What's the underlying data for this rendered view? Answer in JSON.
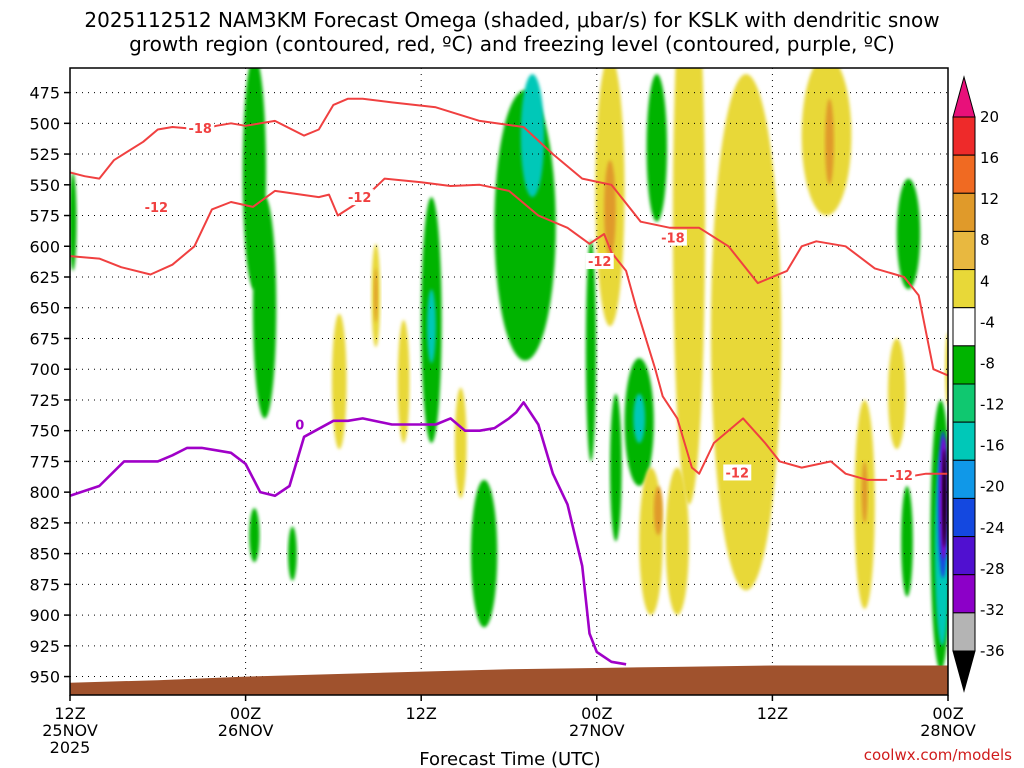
{
  "chart_data": {
    "type": "heatmap",
    "title": "2025112512 NAM3KM Forecast Omega (shaded, μbar/s) for KSLK with dendritic snow",
    "subtitle": "growth region (contoured, red, ºC) and freezing level (contoured, purple, ºC)",
    "xlabel": "Forecast Time (UTC)",
    "credit": "coolwx.com/models",
    "y_axis": {
      "scale": "pressure (hPa), increasing downward",
      "ylim": [
        455,
        965
      ],
      "ticks": [
        "475",
        "500",
        "525",
        "550",
        "575",
        "600",
        "625",
        "650",
        "675",
        "700",
        "725",
        "750",
        "775",
        "800",
        "825",
        "850",
        "875",
        "900",
        "925",
        "950"
      ]
    },
    "x_axis": {
      "xlim_hours": [
        0,
        60
      ],
      "ticks": [
        {
          "h": 0,
          "line1": "12Z",
          "line2": "25NOV",
          "line3": "2025"
        },
        {
          "h": 12,
          "line1": "00Z",
          "line2": "26NOV",
          "line3": ""
        },
        {
          "h": 24,
          "line1": "12Z",
          "line2": "",
          "line3": ""
        },
        {
          "h": 36,
          "line1": "00Z",
          "line2": "27NOV",
          "line3": ""
        },
        {
          "h": 48,
          "line1": "12Z",
          "line2": "",
          "line3": ""
        },
        {
          "h": 60,
          "line1": "00Z",
          "line2": "28NOV",
          "line3": ""
        }
      ]
    },
    "grid": true,
    "colorbar": {
      "ticks": [
        "20",
        "16",
        "12",
        "8",
        "4",
        "-4",
        "-8",
        "-12",
        "-16",
        "-20",
        "-24",
        "-28",
        "-32",
        "-36"
      ],
      "colors": [
        "#e8107a",
        "#ee2a2a",
        "#f06a22",
        "#e09a2a",
        "#e8b840",
        "#e8d838",
        "#ffffff",
        "#00b400",
        "#10c870",
        "#00c8b8",
        "#1098e8",
        "#1448e0",
        "#5010d0",
        "#8c00c8",
        "#b4b4b4",
        "#000000"
      ]
    },
    "omega_regions": [
      {
        "color": "#00b400",
        "center": [
          12.6,
          540
        ],
        "radius": [
          0.8,
          95
        ]
      },
      {
        "color": "#00b400",
        "center": [
          13.3,
          650
        ],
        "radius": [
          0.8,
          90
        ]
      },
      {
        "color": "#00b400",
        "center": [
          12.6,
          835
        ],
        "radius": [
          0.35,
          22
        ]
      },
      {
        "color": "#00b400",
        "center": [
          15.2,
          850
        ],
        "radius": [
          0.3,
          22
        ]
      },
      {
        "color": "#00b400",
        "center": [
          0.2,
          580
        ],
        "radius": [
          0.25,
          40
        ]
      },
      {
        "color": "#00b400",
        "center": [
          24.7,
          660
        ],
        "radius": [
          0.7,
          100
        ]
      },
      {
        "color": "#00c8b8",
        "center": [
          24.7,
          665
        ],
        "radius": [
          0.3,
          30
        ]
      },
      {
        "color": "#00b400",
        "center": [
          31.1,
          583
        ],
        "radius": [
          2.1,
          110
        ]
      },
      {
        "color": "#00c8b8",
        "center": [
          31.6,
          510
        ],
        "radius": [
          0.8,
          50
        ]
      },
      {
        "color": "#00b400",
        "center": [
          28.3,
          850
        ],
        "radius": [
          0.9,
          60
        ]
      },
      {
        "color": "#00b400",
        "center": [
          37.3,
          780
        ],
        "radius": [
          0.4,
          60
        ]
      },
      {
        "color": "#00b400",
        "center": [
          35.6,
          685
        ],
        "radius": [
          0.35,
          90
        ]
      },
      {
        "color": "#00b400",
        "center": [
          40.1,
          520
        ],
        "radius": [
          0.7,
          60
        ]
      },
      {
        "color": "#00b400",
        "center": [
          38.9,
          743
        ],
        "radius": [
          1.0,
          52
        ]
      },
      {
        "color": "#00c8b8",
        "center": [
          38.9,
          740
        ],
        "radius": [
          0.4,
          20
        ]
      },
      {
        "color": "#00b400",
        "center": [
          57.3,
          590
        ],
        "radius": [
          0.8,
          45
        ]
      },
      {
        "color": "#00b400",
        "center": [
          57.2,
          840
        ],
        "radius": [
          0.4,
          45
        ]
      },
      {
        "color": "#00b400",
        "center": [
          59.5,
          835
        ],
        "radius": [
          0.7,
          110
        ]
      },
      {
        "color": "#00c8b8",
        "center": [
          59.6,
          845
        ],
        "radius": [
          0.5,
          80
        ]
      },
      {
        "color": "#1448e0",
        "center": [
          59.65,
          810
        ],
        "radius": [
          0.35,
          60
        ]
      },
      {
        "color": "#8c00c8",
        "center": [
          59.7,
          805
        ],
        "radius": [
          0.25,
          50
        ]
      },
      {
        "color": "#000000",
        "center": [
          59.75,
          805
        ],
        "radius": [
          0.13,
          40
        ]
      },
      {
        "color": "#e8d838",
        "center": [
          20.9,
          640
        ],
        "radius": [
          0.3,
          42
        ]
      },
      {
        "color": "#e09a2a",
        "center": [
          20.9,
          640
        ],
        "radius": [
          0.12,
          22
        ]
      },
      {
        "color": "#e8d838",
        "center": [
          18.4,
          710
        ],
        "radius": [
          0.5,
          55
        ]
      },
      {
        "color": "#e8d838",
        "center": [
          22.8,
          710
        ],
        "radius": [
          0.4,
          50
        ]
      },
      {
        "color": "#e8d838",
        "center": [
          26.7,
          760
        ],
        "radius": [
          0.4,
          45
        ]
      },
      {
        "color": "#e8d838",
        "center": [
          36.9,
          555
        ],
        "radius": [
          1.0,
          110
        ]
      },
      {
        "color": "#e09a2a",
        "center": [
          36.9,
          570
        ],
        "radius": [
          0.4,
          40
        ]
      },
      {
        "color": "#e8d838",
        "center": [
          42.3,
          580
        ],
        "radius": [
          1.1,
          230
        ]
      },
      {
        "color": "#e8d838",
        "center": [
          39.7,
          840
        ],
        "radius": [
          0.8,
          60
        ]
      },
      {
        "color": "#e8d838",
        "center": [
          41.5,
          840
        ],
        "radius": [
          0.8,
          60
        ]
      },
      {
        "color": "#e09a2a",
        "center": [
          40.2,
          815
        ],
        "radius": [
          0.3,
          20
        ]
      },
      {
        "color": "#e8d838",
        "center": [
          46.2,
          670
        ],
        "radius": [
          2.4,
          210
        ]
      },
      {
        "color": "#e8d838",
        "center": [
          51.7,
          510
        ],
        "radius": [
          1.7,
          65
        ]
      },
      {
        "color": "#e09a2a",
        "center": [
          51.9,
          515
        ],
        "radius": [
          0.3,
          35
        ]
      },
      {
        "color": "#e8d838",
        "center": [
          54.3,
          810
        ],
        "radius": [
          0.7,
          85
        ]
      },
      {
        "color": "#e09a2a",
        "center": [
          54.3,
          800
        ],
        "radius": [
          0.2,
          25
        ]
      },
      {
        "color": "#e8d838",
        "center": [
          56.5,
          720
        ],
        "radius": [
          0.6,
          45
        ]
      },
      {
        "color": "#e8d838",
        "center": [
          60.0,
          700
        ],
        "radius": [
          0.2,
          30
        ]
      }
    ],
    "terrain": {
      "color": "#a0522d",
      "x": [
        0,
        6,
        12,
        18,
        24,
        30,
        36,
        42,
        48,
        54,
        60
      ],
      "surface_hPa": [
        955,
        953,
        950,
        948,
        946,
        944,
        943,
        942,
        941,
        941,
        941
      ]
    },
    "contours": [
      {
        "kind": "dgz",
        "label": "-12",
        "color": "#f04040",
        "points": [
          [
            0,
            608
          ],
          [
            2,
            610
          ],
          [
            3.5,
            617
          ],
          [
            5.5,
            623
          ],
          [
            7,
            615
          ],
          [
            8.5,
            600
          ],
          [
            9.7,
            570
          ],
          [
            11,
            564
          ],
          [
            12.5,
            568
          ],
          [
            14,
            555
          ],
          [
            17,
            560
          ],
          [
            17.7,
            558
          ],
          [
            18.3,
            575
          ],
          [
            20,
            562
          ],
          [
            21.5,
            545
          ],
          [
            24,
            548
          ],
          [
            26,
            551
          ],
          [
            28,
            550
          ],
          [
            30,
            555
          ],
          [
            32,
            575
          ],
          [
            34,
            585
          ],
          [
            35.5,
            598
          ],
          [
            36.5,
            590
          ],
          [
            37,
            605
          ],
          [
            38,
            620
          ],
          [
            38.7,
            650
          ],
          [
            40,
            700
          ],
          [
            40.5,
            722
          ],
          [
            41.5,
            740
          ],
          [
            42.5,
            780
          ],
          [
            43,
            785
          ],
          [
            44,
            760
          ],
          [
            46,
            740
          ],
          [
            47.5,
            760
          ],
          [
            48.5,
            775
          ],
          [
            50,
            780
          ],
          [
            52,
            775
          ],
          [
            53,
            785
          ],
          [
            54.5,
            790
          ],
          [
            56,
            790
          ],
          [
            58.5,
            785
          ],
          [
            60,
            785
          ]
        ]
      },
      {
        "kind": "dgz",
        "label": "-18",
        "color": "#f04040",
        "points": [
          [
            0,
            540
          ],
          [
            1,
            543
          ],
          [
            2,
            545
          ],
          [
            3,
            530
          ],
          [
            5,
            515
          ],
          [
            6,
            505
          ],
          [
            7,
            503
          ],
          [
            9,
            505
          ],
          [
            10,
            502
          ],
          [
            11,
            500
          ],
          [
            12,
            502
          ],
          [
            14,
            498
          ],
          [
            16,
            510
          ],
          [
            17,
            505
          ],
          [
            18,
            485
          ],
          [
            19,
            480
          ],
          [
            20,
            480
          ],
          [
            22,
            483
          ],
          [
            25,
            487
          ],
          [
            28,
            498
          ],
          [
            31,
            503
          ],
          [
            33,
            525
          ],
          [
            35,
            545
          ],
          [
            37,
            550
          ],
          [
            39,
            580
          ],
          [
            41,
            585
          ],
          [
            43,
            585
          ],
          [
            45,
            600
          ],
          [
            47,
            630
          ],
          [
            49,
            620
          ],
          [
            50,
            600
          ],
          [
            51,
            596
          ],
          [
            53,
            600
          ],
          [
            55,
            618
          ],
          [
            57,
            625
          ],
          [
            58,
            640
          ],
          [
            59,
            700
          ],
          [
            60,
            705
          ]
        ]
      },
      {
        "kind": "freezing",
        "label": "0",
        "color": "#a000c8",
        "points": [
          [
            0,
            803
          ],
          [
            2,
            795
          ],
          [
            3.7,
            775
          ],
          [
            5,
            775
          ],
          [
            6,
            775
          ],
          [
            7,
            770
          ],
          [
            8,
            764
          ],
          [
            9,
            764
          ],
          [
            10,
            766
          ],
          [
            11,
            768
          ],
          [
            12,
            777
          ],
          [
            13,
            800
          ],
          [
            14,
            803
          ],
          [
            15,
            795
          ],
          [
            16,
            755
          ],
          [
            18,
            742
          ],
          [
            19,
            742
          ],
          [
            20,
            740
          ],
          [
            22,
            745
          ],
          [
            23,
            745
          ],
          [
            25,
            745
          ],
          [
            26,
            740
          ],
          [
            27,
            750
          ],
          [
            28,
            750
          ],
          [
            29,
            748
          ],
          [
            30,
            740
          ],
          [
            30.5,
            735
          ],
          [
            31,
            727
          ],
          [
            32,
            745
          ],
          [
            33,
            785
          ],
          [
            34,
            810
          ],
          [
            35,
            860
          ],
          [
            35.5,
            915
          ],
          [
            36,
            930
          ],
          [
            37,
            938
          ],
          [
            38,
            940
          ]
        ]
      }
    ],
    "contour_labels": [
      {
        "text": "-18",
        "x": 8.9,
        "y": 504,
        "color": "#f04040"
      },
      {
        "text": "-12",
        "x": 5.9,
        "y": 568,
        "color": "#f04040"
      },
      {
        "text": "-12",
        "x": 19.8,
        "y": 560,
        "color": "#f04040"
      },
      {
        "text": "-12",
        "x": 36.2,
        "y": 612,
        "color": "#f04040"
      },
      {
        "text": "-18",
        "x": 41.2,
        "y": 593,
        "color": "#f04040"
      },
      {
        "text": "-12",
        "x": 45.6,
        "y": 784,
        "color": "#f04040"
      },
      {
        "text": "-12",
        "x": 56.8,
        "y": 786,
        "color": "#f04040"
      },
      {
        "text": "0",
        "x": 15.7,
        "y": 745,
        "color": "#a000c8"
      }
    ]
  }
}
